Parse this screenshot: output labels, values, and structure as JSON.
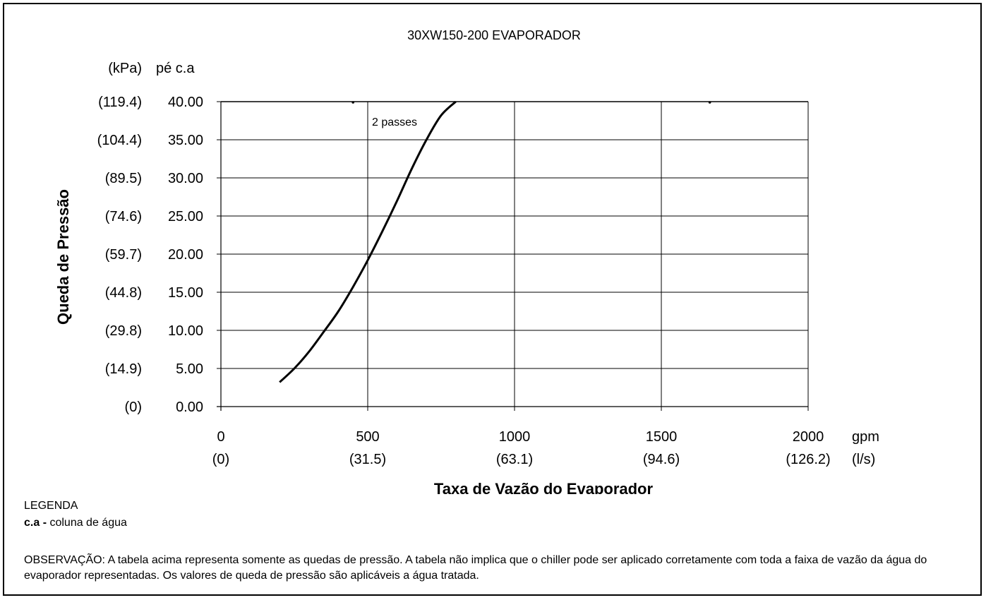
{
  "chart_data": {
    "type": "line",
    "title": "30XW150-200 EVAPORADOR",
    "ylabel": "Queda de Pressão",
    "xlabel": "Taxa de Vazão do Evaporador",
    "y_unit_primary": "pé c.a",
    "y_unit_secondary": "(kPa)",
    "x_unit_primary": "gpm",
    "x_unit_secondary": "(l/s)",
    "xlim": [
      0,
      2000
    ],
    "ylim": [
      0,
      40
    ],
    "grid": true,
    "x_ticks": [
      {
        "value": 0,
        "label": "0",
        "sublabel": "(0)"
      },
      {
        "value": 500,
        "label": "500",
        "sublabel": "(31.5)"
      },
      {
        "value": 1000,
        "label": "1000",
        "sublabel": "(63.1)"
      },
      {
        "value": 1500,
        "label": "1500",
        "sublabel": "(94.6)"
      },
      {
        "value": 2000,
        "label": "2000",
        "sublabel": "(126.2)"
      }
    ],
    "y_ticks": [
      {
        "value": 0,
        "label": "0.00",
        "sublabel": "(0)"
      },
      {
        "value": 5,
        "label": "5.00",
        "sublabel": "(14.9)"
      },
      {
        "value": 10,
        "label": "10.00",
        "sublabel": "(29.8)"
      },
      {
        "value": 15,
        "label": "15.00",
        "sublabel": "(44.8)"
      },
      {
        "value": 20,
        "label": "20.00",
        "sublabel": "(59.7)"
      },
      {
        "value": 25,
        "label": "25.00",
        "sublabel": "(74.6)"
      },
      {
        "value": 30,
        "label": "30.00",
        "sublabel": "(89.5)"
      },
      {
        "value": 35,
        "label": "35.00",
        "sublabel": "(104.4)"
      },
      {
        "value": 40,
        "label": "40.00",
        "sublabel": "(119.4)"
      }
    ],
    "series": [
      {
        "name": "2 passes",
        "x": [
          200,
          250,
          300,
          350,
          400,
          450,
          500,
          550,
          600,
          650,
          700,
          750,
          800
        ],
        "y": [
          3.2,
          5.0,
          7.2,
          9.8,
          12.5,
          15.7,
          19.2,
          23.0,
          27.0,
          31.2,
          35.0,
          38.2,
          40.0
        ]
      }
    ],
    "markers_on_top": [
      450,
      1665
    ]
  },
  "legend": {
    "title": "LEGENDA",
    "key": "c.a -",
    "desc": " coluna de água"
  },
  "note": "OBSERVAÇÃO: A tabela acima representa somente as quedas de pressão. A tabela não implica que o chiller pode ser aplicado corretamente com toda a faixa de vazão da água do evaporador representadas. Os valores de queda de pressão são aplicáveis a água tratada."
}
